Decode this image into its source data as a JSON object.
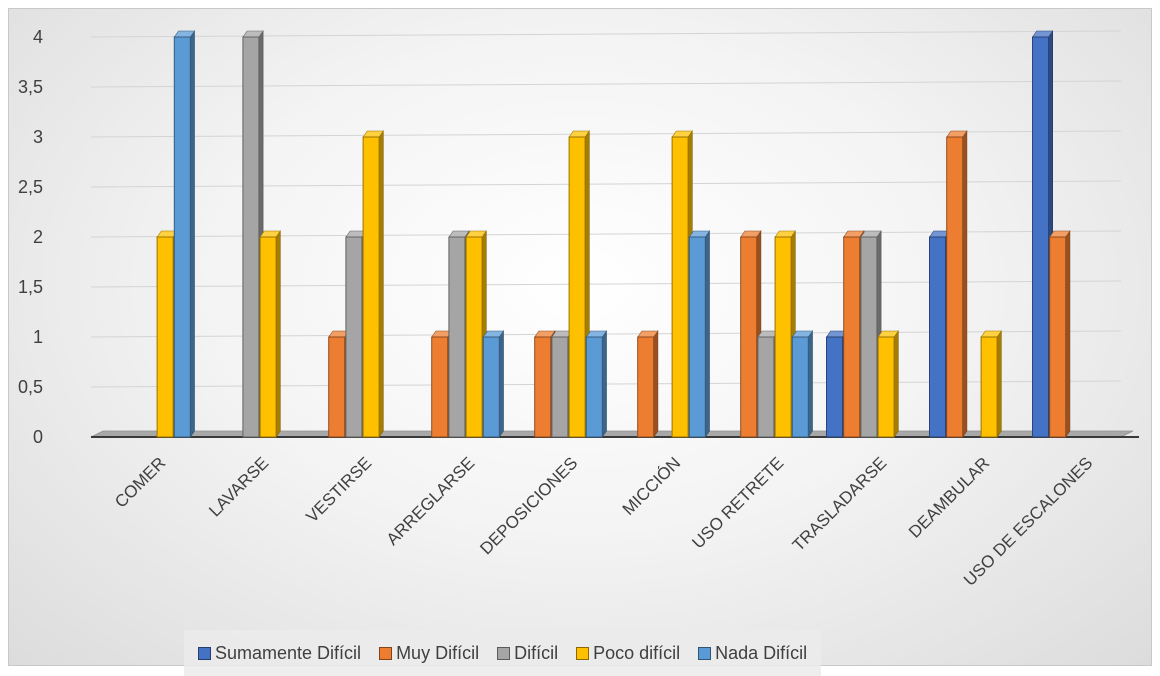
{
  "chart_data": {
    "type": "bar",
    "categories": [
      "COMER",
      "LAVARSE",
      "VESTIRSE",
      "ARREGLARSE",
      "DEPOSICIONES",
      "MICCIÓN",
      "USO RETRETE",
      "TRASLADARSE",
      "DEAMBULAR",
      "USO DE ESCALONES"
    ],
    "series": [
      {
        "name": "Sumamente Difícil",
        "color": "#4472C4",
        "values": [
          0,
          0,
          0,
          0,
          0,
          0,
          0,
          1,
          2,
          4
        ]
      },
      {
        "name": "Muy Difícil",
        "color": "#ED7D31",
        "values": [
          0,
          0,
          1,
          1,
          1,
          1,
          2,
          2,
          3,
          2
        ]
      },
      {
        "name": "Difícil",
        "color": "#A5A5A5",
        "values": [
          0,
          4,
          2,
          2,
          1,
          0,
          1,
          2,
          0,
          0
        ]
      },
      {
        "name": "Poco difícil",
        "color": "#FFC000",
        "values": [
          2,
          2,
          3,
          2,
          3,
          3,
          2,
          1,
          1,
          0
        ]
      },
      {
        "name": "Nada Difícil",
        "color": "#5B9BD5",
        "values": [
          4,
          0,
          0,
          1,
          1,
          2,
          1,
          0,
          0,
          0
        ]
      }
    ],
    "ylim": [
      0,
      4
    ],
    "yticks": [
      "0",
      "0,5",
      "1",
      "1,5",
      "2",
      "2,5",
      "3",
      "3,5",
      "4"
    ],
    "grid": true,
    "legend_position": "bottom"
  }
}
